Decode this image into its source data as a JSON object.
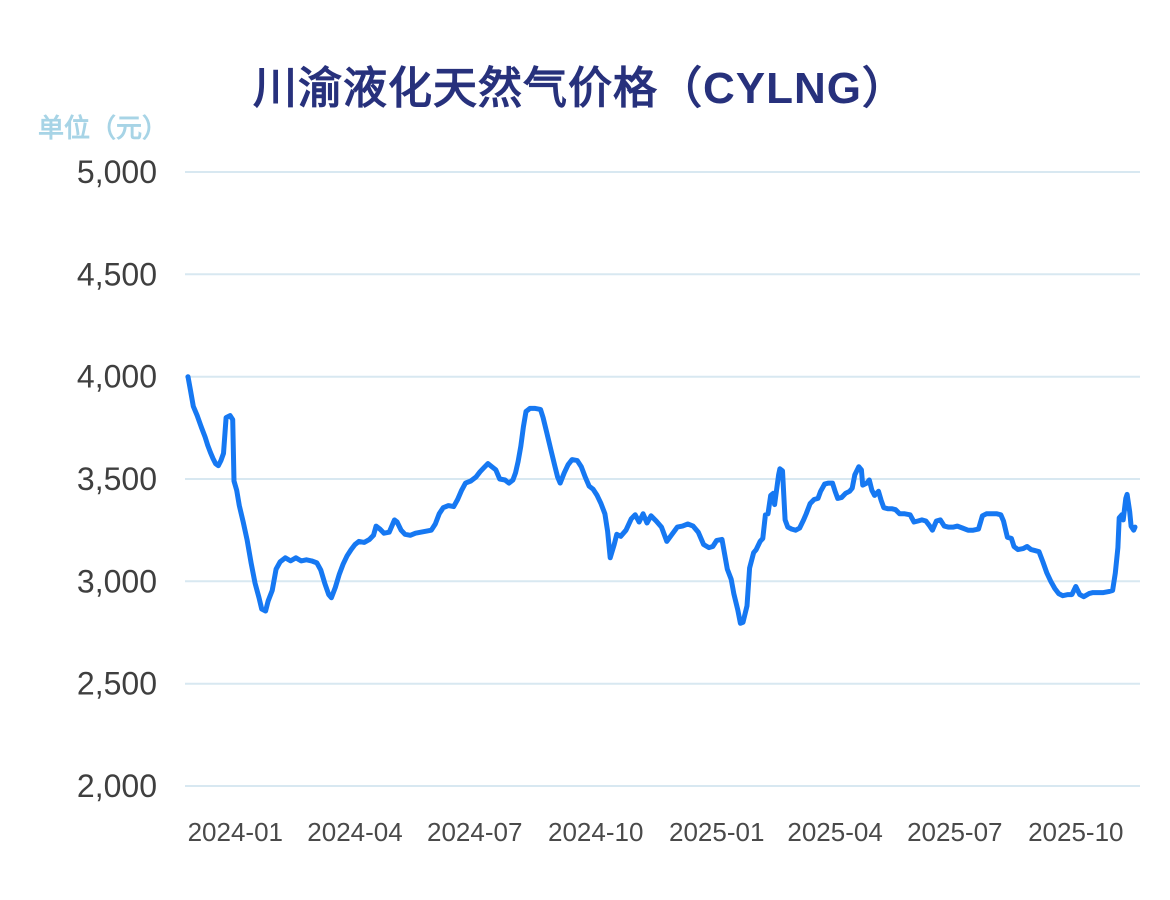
{
  "header": {
    "title": "川渝液化天然气价格（CYLNG）",
    "unit_label": "单位（元）"
  },
  "colors": {
    "title": "#27317c",
    "unit_label": "#a7d4e6",
    "y_tick_label": "#3f3f3f",
    "x_tick_label": "#4a4a4a",
    "gridline": "#d8e8f1",
    "line": "#1678f2",
    "background": "#ffffff"
  },
  "chart_data": {
    "type": "line",
    "title": "川渝液化天然气价格（CYLNG）",
    "ylabel": "单位（元）",
    "xlabel": "",
    "legend_position": "none",
    "grid": true,
    "ylim": [
      2000,
      5000
    ],
    "y_ticks": [
      {
        "value": 5000,
        "label": "5,000"
      },
      {
        "value": 4500,
        "label": "4,500"
      },
      {
        "value": 4000,
        "label": "4,000"
      },
      {
        "value": 3500,
        "label": "3,500"
      },
      {
        "value": 3000,
        "label": "3,000"
      },
      {
        "value": 2500,
        "label": "2,500"
      },
      {
        "value": 2000,
        "label": "2,000"
      }
    ],
    "x_ticks": [
      {
        "date": "2024-01-01",
        "label": "2024-01"
      },
      {
        "date": "2024-04-01",
        "label": "2024-04"
      },
      {
        "date": "2024-07-01",
        "label": "2024-07"
      },
      {
        "date": "2024-10-01",
        "label": "2024-10"
      },
      {
        "date": "2025-01-01",
        "label": "2025-01"
      },
      {
        "date": "2025-04-01",
        "label": "2025-04"
      },
      {
        "date": "2025-07-01",
        "label": "2025-07"
      },
      {
        "date": "2025-10-01",
        "label": "2025-10"
      }
    ],
    "x_range": {
      "start": "2023-11-26",
      "end": "2025-11-15"
    },
    "series": [
      {
        "name": "CYLNG",
        "points": [
          [
            "2023-11-26",
            4000
          ],
          [
            "2023-11-28",
            3930
          ],
          [
            "2023-11-30",
            3855
          ],
          [
            "2023-12-03",
            3810
          ],
          [
            "2023-12-06",
            3755
          ],
          [
            "2023-12-09",
            3705
          ],
          [
            "2023-12-11",
            3665
          ],
          [
            "2023-12-13",
            3630
          ],
          [
            "2023-12-15",
            3600
          ],
          [
            "2023-12-17",
            3575
          ],
          [
            "2023-12-19",
            3565
          ],
          [
            "2023-12-21",
            3590
          ],
          [
            "2023-12-23",
            3625
          ],
          [
            "2023-12-25",
            3800
          ],
          [
            "2023-12-28",
            3810
          ],
          [
            "2023-12-30",
            3790
          ],
          [
            "2023-12-31",
            3490
          ],
          [
            "2024-01-02",
            3445
          ],
          [
            "2024-01-04",
            3370
          ],
          [
            "2024-01-07",
            3290
          ],
          [
            "2024-01-10",
            3200
          ],
          [
            "2024-01-13",
            3090
          ],
          [
            "2024-01-16",
            2990
          ],
          [
            "2024-01-19",
            2920
          ],
          [
            "2024-01-21",
            2865
          ],
          [
            "2024-01-24",
            2855
          ],
          [
            "2024-01-26",
            2905
          ],
          [
            "2024-01-29",
            2955
          ],
          [
            "2024-02-01",
            3060
          ],
          [
            "2024-02-04",
            3095
          ],
          [
            "2024-02-08",
            3115
          ],
          [
            "2024-02-12",
            3100
          ],
          [
            "2024-02-16",
            3115
          ],
          [
            "2024-02-20",
            3100
          ],
          [
            "2024-02-24",
            3105
          ],
          [
            "2024-02-28",
            3100
          ],
          [
            "2024-03-03",
            3090
          ],
          [
            "2024-03-06",
            3055
          ],
          [
            "2024-03-09",
            2990
          ],
          [
            "2024-03-12",
            2935
          ],
          [
            "2024-03-14",
            2920
          ],
          [
            "2024-03-17",
            2970
          ],
          [
            "2024-03-20",
            3035
          ],
          [
            "2024-03-23",
            3085
          ],
          [
            "2024-03-26",
            3125
          ],
          [
            "2024-03-29",
            3155
          ],
          [
            "2024-04-01",
            3180
          ],
          [
            "2024-04-04",
            3195
          ],
          [
            "2024-04-08",
            3190
          ],
          [
            "2024-04-12",
            3205
          ],
          [
            "2024-04-15",
            3225
          ],
          [
            "2024-04-17",
            3270
          ],
          [
            "2024-04-20",
            3255
          ],
          [
            "2024-04-23",
            3235
          ],
          [
            "2024-04-27",
            3240
          ],
          [
            "2024-05-01",
            3300
          ],
          [
            "2024-05-03",
            3290
          ],
          [
            "2024-05-06",
            3250
          ],
          [
            "2024-05-09",
            3230
          ],
          [
            "2024-05-13",
            3225
          ],
          [
            "2024-05-17",
            3235
          ],
          [
            "2024-05-21",
            3240
          ],
          [
            "2024-05-25",
            3245
          ],
          [
            "2024-05-29",
            3250
          ],
          [
            "2024-06-01",
            3280
          ],
          [
            "2024-06-04",
            3330
          ],
          [
            "2024-06-07",
            3360
          ],
          [
            "2024-06-11",
            3370
          ],
          [
            "2024-06-15",
            3365
          ],
          [
            "2024-06-18",
            3400
          ],
          [
            "2024-06-21",
            3445
          ],
          [
            "2024-06-24",
            3480
          ],
          [
            "2024-06-28",
            3490
          ],
          [
            "2024-07-02",
            3510
          ],
          [
            "2024-07-05",
            3535
          ],
          [
            "2024-07-08",
            3555
          ],
          [
            "2024-07-11",
            3575
          ],
          [
            "2024-07-14",
            3560
          ],
          [
            "2024-07-17",
            3545
          ],
          [
            "2024-07-20",
            3500
          ],
          [
            "2024-07-24",
            3495
          ],
          [
            "2024-07-27",
            3480
          ],
          [
            "2024-07-30",
            3495
          ],
          [
            "2024-08-01",
            3530
          ],
          [
            "2024-08-03",
            3585
          ],
          [
            "2024-08-05",
            3660
          ],
          [
            "2024-08-07",
            3755
          ],
          [
            "2024-08-09",
            3830
          ],
          [
            "2024-08-12",
            3845
          ],
          [
            "2024-08-16",
            3845
          ],
          [
            "2024-08-20",
            3840
          ],
          [
            "2024-08-22",
            3800
          ],
          [
            "2024-08-25",
            3720
          ],
          [
            "2024-08-28",
            3640
          ],
          [
            "2024-08-31",
            3560
          ],
          [
            "2024-09-02",
            3510
          ],
          [
            "2024-09-04",
            3480
          ],
          [
            "2024-09-07",
            3530
          ],
          [
            "2024-09-10",
            3570
          ],
          [
            "2024-09-13",
            3595
          ],
          [
            "2024-09-17",
            3590
          ],
          [
            "2024-09-20",
            3560
          ],
          [
            "2024-09-23",
            3510
          ],
          [
            "2024-09-26",
            3465
          ],
          [
            "2024-09-29",
            3450
          ],
          [
            "2024-10-02",
            3420
          ],
          [
            "2024-10-05",
            3380
          ],
          [
            "2024-10-08",
            3330
          ],
          [
            "2024-10-10",
            3245
          ],
          [
            "2024-10-12",
            3115
          ],
          [
            "2024-10-15",
            3180
          ],
          [
            "2024-10-17",
            3230
          ],
          [
            "2024-10-20",
            3220
          ],
          [
            "2024-10-24",
            3250
          ],
          [
            "2024-10-28",
            3305
          ],
          [
            "2024-10-31",
            3325
          ],
          [
            "2024-11-03",
            3290
          ],
          [
            "2024-11-06",
            3330
          ],
          [
            "2024-11-09",
            3285
          ],
          [
            "2024-11-12",
            3320
          ],
          [
            "2024-11-16",
            3295
          ],
          [
            "2024-11-20",
            3265
          ],
          [
            "2024-11-24",
            3195
          ],
          [
            "2024-11-28",
            3230
          ],
          [
            "2024-12-02",
            3265
          ],
          [
            "2024-12-06",
            3270
          ],
          [
            "2024-12-10",
            3280
          ],
          [
            "2024-12-14",
            3270
          ],
          [
            "2024-12-18",
            3240
          ],
          [
            "2024-12-22",
            3180
          ],
          [
            "2024-12-26",
            3165
          ],
          [
            "2024-12-29",
            3170
          ],
          [
            "2025-01-01",
            3200
          ],
          [
            "2025-01-05",
            3205
          ],
          [
            "2025-01-09",
            3060
          ],
          [
            "2025-01-12",
            3010
          ],
          [
            "2025-01-14",
            2940
          ],
          [
            "2025-01-17",
            2860
          ],
          [
            "2025-01-19",
            2795
          ],
          [
            "2025-01-21",
            2800
          ],
          [
            "2025-01-24",
            2880
          ],
          [
            "2025-01-26",
            3065
          ],
          [
            "2025-01-29",
            3140
          ],
          [
            "2025-01-31",
            3155
          ],
          [
            "2025-02-03",
            3195
          ],
          [
            "2025-02-05",
            3210
          ],
          [
            "2025-02-07",
            3325
          ],
          [
            "2025-02-09",
            3330
          ],
          [
            "2025-02-11",
            3420
          ],
          [
            "2025-02-13",
            3430
          ],
          [
            "2025-02-14",
            3375
          ],
          [
            "2025-02-17",
            3520
          ],
          [
            "2025-02-18",
            3550
          ],
          [
            "2025-02-20",
            3540
          ],
          [
            "2025-02-22",
            3300
          ],
          [
            "2025-02-24",
            3265
          ],
          [
            "2025-02-27",
            3255
          ],
          [
            "2025-03-02",
            3250
          ],
          [
            "2025-03-05",
            3260
          ],
          [
            "2025-03-08",
            3300
          ],
          [
            "2025-03-10",
            3330
          ],
          [
            "2025-03-13",
            3380
          ],
          [
            "2025-03-16",
            3400
          ],
          [
            "2025-03-19",
            3405
          ],
          [
            "2025-03-21",
            3440
          ],
          [
            "2025-03-24",
            3475
          ],
          [
            "2025-03-27",
            3480
          ],
          [
            "2025-03-30",
            3480
          ],
          [
            "2025-04-01",
            3440
          ],
          [
            "2025-04-03",
            3405
          ],
          [
            "2025-04-06",
            3410
          ],
          [
            "2025-04-09",
            3430
          ],
          [
            "2025-04-12",
            3440
          ],
          [
            "2025-04-14",
            3455
          ],
          [
            "2025-04-16",
            3520
          ],
          [
            "2025-04-19",
            3560
          ],
          [
            "2025-04-21",
            3545
          ],
          [
            "2025-04-22",
            3470
          ],
          [
            "2025-04-25",
            3480
          ],
          [
            "2025-04-27",
            3495
          ],
          [
            "2025-04-29",
            3445
          ],
          [
            "2025-05-01",
            3420
          ],
          [
            "2025-05-04",
            3440
          ],
          [
            "2025-05-06",
            3395
          ],
          [
            "2025-05-08",
            3360
          ],
          [
            "2025-05-11",
            3355
          ],
          [
            "2025-05-14",
            3355
          ],
          [
            "2025-05-17",
            3350
          ],
          [
            "2025-05-20",
            3330
          ],
          [
            "2025-05-24",
            3330
          ],
          [
            "2025-05-28",
            3325
          ],
          [
            "2025-05-31",
            3290
          ],
          [
            "2025-06-03",
            3295
          ],
          [
            "2025-06-06",
            3300
          ],
          [
            "2025-06-09",
            3295
          ],
          [
            "2025-06-12",
            3270
          ],
          [
            "2025-06-14",
            3250
          ],
          [
            "2025-06-17",
            3295
          ],
          [
            "2025-06-20",
            3300
          ],
          [
            "2025-06-23",
            3270
          ],
          [
            "2025-06-26",
            3265
          ],
          [
            "2025-06-30",
            3265
          ],
          [
            "2025-07-03",
            3270
          ],
          [
            "2025-07-07",
            3260
          ],
          [
            "2025-07-11",
            3250
          ],
          [
            "2025-07-15",
            3250
          ],
          [
            "2025-07-19",
            3255
          ],
          [
            "2025-07-22",
            3320
          ],
          [
            "2025-07-25",
            3330
          ],
          [
            "2025-07-29",
            3330
          ],
          [
            "2025-08-02",
            3330
          ],
          [
            "2025-08-05",
            3325
          ],
          [
            "2025-08-07",
            3295
          ],
          [
            "2025-08-10",
            3215
          ],
          [
            "2025-08-13",
            3210
          ],
          [
            "2025-08-15",
            3170
          ],
          [
            "2025-08-18",
            3155
          ],
          [
            "2025-08-22",
            3160
          ],
          [
            "2025-08-25",
            3170
          ],
          [
            "2025-08-28",
            3155
          ],
          [
            "2025-08-31",
            3150
          ],
          [
            "2025-09-03",
            3145
          ],
          [
            "2025-09-06",
            3095
          ],
          [
            "2025-09-09",
            3040
          ],
          [
            "2025-09-12",
            3000
          ],
          [
            "2025-09-15",
            2965
          ],
          [
            "2025-09-18",
            2940
          ],
          [
            "2025-09-21",
            2930
          ],
          [
            "2025-09-25",
            2935
          ],
          [
            "2025-09-28",
            2935
          ],
          [
            "2025-10-01",
            2975
          ],
          [
            "2025-10-04",
            2935
          ],
          [
            "2025-10-07",
            2925
          ],
          [
            "2025-10-11",
            2940
          ],
          [
            "2025-10-14",
            2945
          ],
          [
            "2025-10-18",
            2945
          ],
          [
            "2025-10-22",
            2945
          ],
          [
            "2025-10-26",
            2950
          ],
          [
            "2025-10-29",
            2955
          ],
          [
            "2025-10-31",
            3040
          ],
          [
            "2025-11-02",
            3165
          ],
          [
            "2025-11-03",
            3310
          ],
          [
            "2025-11-05",
            3325
          ],
          [
            "2025-11-06",
            3300
          ],
          [
            "2025-11-08",
            3405
          ],
          [
            "2025-11-09",
            3425
          ],
          [
            "2025-11-11",
            3340
          ],
          [
            "2025-11-12",
            3270
          ],
          [
            "2025-11-14",
            3250
          ],
          [
            "2025-11-15",
            3265
          ]
        ]
      }
    ]
  }
}
